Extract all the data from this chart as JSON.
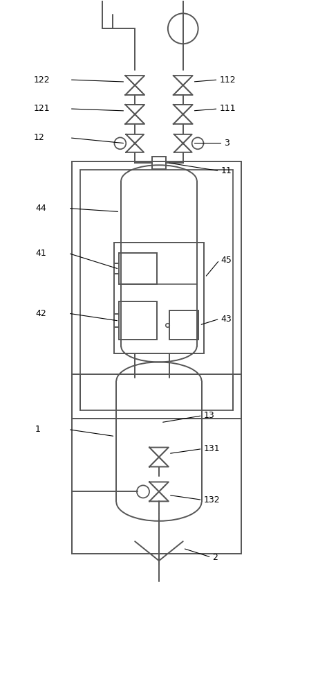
{
  "bg_color": "#ffffff",
  "line_color": "#555555",
  "lw": 1.4,
  "fig_w": 4.47,
  "fig_h": 10.0
}
